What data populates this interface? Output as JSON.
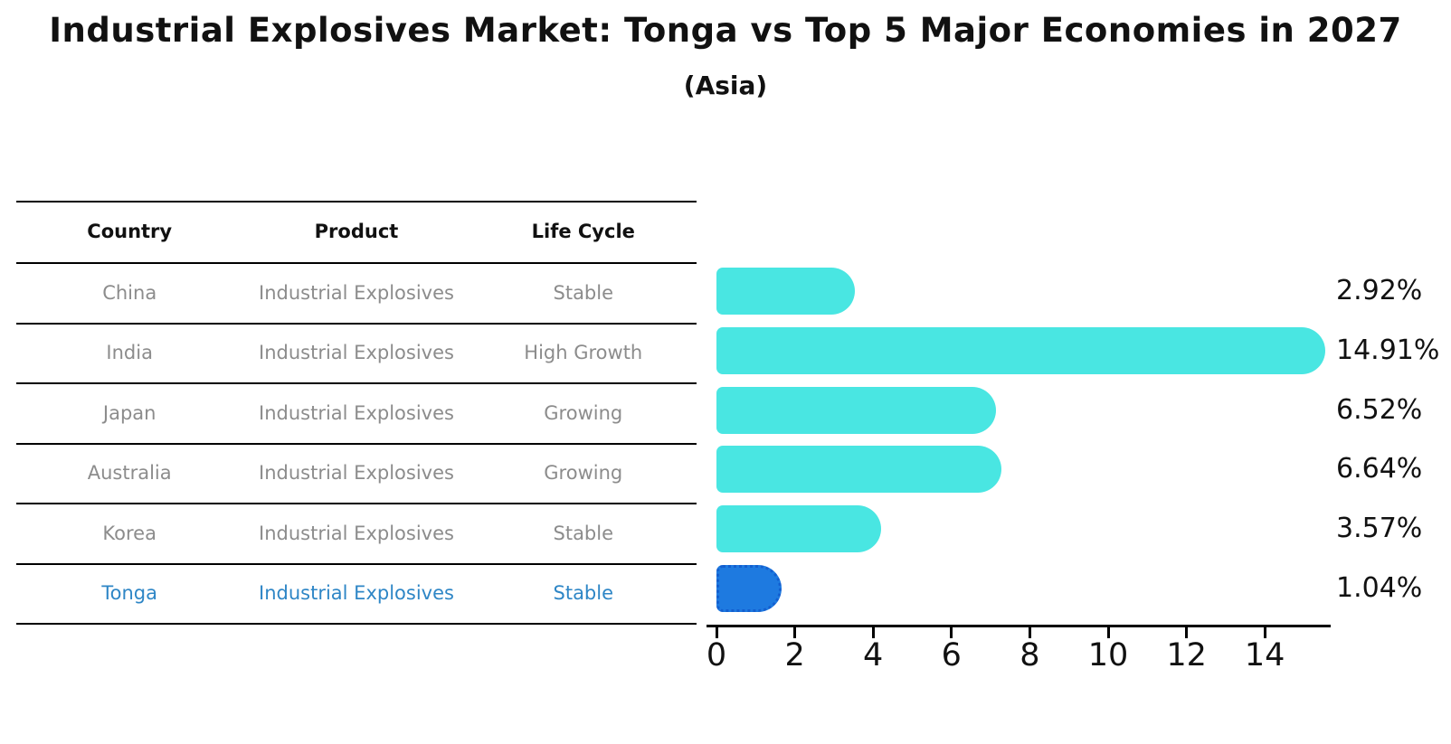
{
  "title": "Industrial Explosives Market: Tonga vs Top 5 Major Economies in 2027",
  "subtitle": "(Asia)",
  "table": {
    "headers": [
      "Country",
      "Product",
      "Life Cycle"
    ],
    "rows": [
      {
        "country": "China",
        "product": "Industrial Explosives",
        "life_cycle": "Stable",
        "highlight": false
      },
      {
        "country": "India",
        "product": "Industrial Explosives",
        "life_cycle": "High Growth",
        "highlight": false
      },
      {
        "country": "Japan",
        "product": "Industrial Explosives",
        "life_cycle": "Growing",
        "highlight": false
      },
      {
        "country": "Australia",
        "product": "Industrial Explosives",
        "life_cycle": "Growing",
        "highlight": false
      },
      {
        "country": "Korea",
        "product": "Industrial Explosives",
        "life_cycle": "Stable",
        "highlight": false
      },
      {
        "country": "Tonga",
        "product": "Industrial Explosives",
        "life_cycle": "Stable",
        "highlight": true
      }
    ]
  },
  "chart_data": {
    "type": "bar",
    "orientation": "horizontal",
    "title": "Industrial Explosives Market: Tonga vs Top 5 Major Economies in 2027 (Asia)",
    "categories": [
      "China",
      "India",
      "Japan",
      "Australia",
      "Korea",
      "Tonga"
    ],
    "values": [
      2.92,
      14.91,
      6.52,
      6.64,
      3.57,
      1.04
    ],
    "value_labels": [
      "2.92%",
      "14.91%",
      "6.52%",
      "6.64%",
      "3.57%",
      "1.04%"
    ],
    "x_ticks": [
      0,
      2,
      4,
      6,
      8,
      10,
      12,
      14
    ],
    "xlim": [
      0,
      15.7
    ],
    "xlabel": "",
    "ylabel": "",
    "grid": false,
    "legend": false,
    "bar_color": "#49E6E2",
    "highlight_color": "#1E7AE0",
    "highlight_index": 5
  },
  "colors": {
    "bar_cyan": "#49E6E2",
    "bar_blue": "#1E7AE0",
    "bar_blue_border": "#135FD0",
    "highlight_text": "#2e86c6",
    "muted_text": "#8c8c8c",
    "text": "#111111"
  }
}
